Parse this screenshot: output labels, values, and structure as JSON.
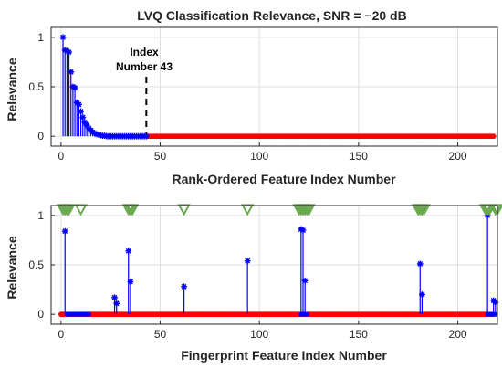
{
  "chart_data": [
    {
      "type": "stem",
      "title": "LVQ Classification Relevance, SNR = −20 dB",
      "xlabel": "Rank-Ordered Feature Index Number",
      "ylabel": "Relevance",
      "xlim": [
        -5,
        220
      ],
      "ylim": [
        -0.1,
        1.1
      ],
      "xticks": [
        "0",
        "50",
        "100",
        "150",
        "200"
      ],
      "yticks": [
        "0",
        "0.5",
        "1"
      ],
      "grid": true,
      "colors": {
        "selected": "#0000ff",
        "rejected": "#ff0000"
      },
      "annotation": {
        "text_line1": "Index",
        "text_line2": "Number 43",
        "x": 43
      },
      "series": [
        {
          "values": [
            {
              "x": 1,
              "y": 1.0
            },
            {
              "x": 2,
              "y": 0.87
            },
            {
              "x": 3,
              "y": 0.86
            },
            {
              "x": 4,
              "y": 0.85
            },
            {
              "x": 5,
              "y": 0.65
            },
            {
              "x": 6,
              "y": 0.5
            },
            {
              "x": 7,
              "y": 0.49
            },
            {
              "x": 8,
              "y": 0.34
            },
            {
              "x": 9,
              "y": 0.32
            },
            {
              "x": 10,
              "y": 0.25
            },
            {
              "x": 11,
              "y": 0.19
            },
            {
              "x": 12,
              "y": 0.14
            },
            {
              "x": 13,
              "y": 0.11
            },
            {
              "x": 14,
              "y": 0.08
            },
            {
              "x": 15,
              "y": 0.06
            },
            {
              "x": 16,
              "y": 0.04
            },
            {
              "x": 17,
              "y": 0.03
            },
            {
              "x": 18,
              "y": 0.02
            },
            {
              "x": 19,
              "y": 0.015
            },
            {
              "x": 20,
              "y": 0.01
            },
            {
              "x": 21,
              "y": 0.005
            },
            {
              "x": 22,
              "y": 0.005
            },
            {
              "x": 23,
              "y": 0.0
            },
            {
              "x": 24,
              "y": 0.0
            },
            {
              "x": 25,
              "y": 0.0
            },
            {
              "x": 26,
              "y": 0.0
            },
            {
              "x": 27,
              "y": 0.0
            },
            {
              "x": 28,
              "y": 0.0
            },
            {
              "x": 29,
              "y": 0.0
            },
            {
              "x": 30,
              "y": 0.0
            },
            {
              "x": 31,
              "y": 0.0
            },
            {
              "x": 32,
              "y": 0.0
            },
            {
              "x": 33,
              "y": 0.0
            },
            {
              "x": 34,
              "y": 0.0
            },
            {
              "x": 35,
              "y": 0.0
            },
            {
              "x": 36,
              "y": 0.0
            },
            {
              "x": 37,
              "y": 0.0
            },
            {
              "x": 38,
              "y": 0.0
            },
            {
              "x": 39,
              "y": 0.0
            },
            {
              "x": 40,
              "y": 0.0
            },
            {
              "x": 41,
              "y": 0.0
            },
            {
              "x": 42,
              "y": 0.0
            },
            {
              "x": 43,
              "y": 0.0
            }
          ],
          "color": "#0000ff"
        },
        {
          "x_range": [
            44,
            218
          ],
          "y": 0,
          "color": "#ff0000"
        }
      ]
    },
    {
      "type": "stem",
      "xlabel": "Fingerprint Feature Index Number",
      "ylabel": "Relevance",
      "xlim": [
        -5,
        220
      ],
      "ylim": [
        -0.1,
        1.1
      ],
      "xticks": [
        "0",
        "50",
        "100",
        "150",
        "200"
      ],
      "yticks": [
        "0",
        "0.5",
        "1"
      ],
      "grid": true,
      "series": [
        {
          "values": [
            {
              "x": 2,
              "y": 0.84
            },
            {
              "x": 27,
              "y": 0.17
            },
            {
              "x": 28,
              "y": 0.11
            },
            {
              "x": 34,
              "y": 0.64
            },
            {
              "x": 35,
              "y": 0.33
            },
            {
              "x": 62,
              "y": 0.28
            },
            {
              "x": 94,
              "y": 0.54
            },
            {
              "x": 121,
              "y": 0.86
            },
            {
              "x": 122,
              "y": 0.85
            },
            {
              "x": 123,
              "y": 0.34
            },
            {
              "x": 181,
              "y": 0.51
            },
            {
              "x": 182,
              "y": 0.2
            },
            {
              "x": 215,
              "y": 1.0
            },
            {
              "x": 218,
              "y": 0.14
            },
            {
              "x": 219,
              "y": 0.12
            }
          ],
          "color": "#0000ff"
        },
        {
          "x_range": [
            0,
            218
          ],
          "y": 0,
          "color": "#ff0000",
          "note_blue_zero_ranges": [
            [
              3,
              14
            ],
            [
              121,
              124
            ],
            [
              215,
              219
            ]
          ]
        },
        {
          "type": "markers",
          "marker": "triangle-down",
          "y": 1.06,
          "x": [
            1,
            2,
            3,
            4,
            10,
            34,
            35,
            36,
            62,
            94,
            120,
            121,
            122,
            123,
            124,
            125,
            180,
            181,
            182,
            183,
            214,
            215,
            216,
            219,
            220
          ],
          "color": "#6aa84f"
        }
      ]
    }
  ]
}
